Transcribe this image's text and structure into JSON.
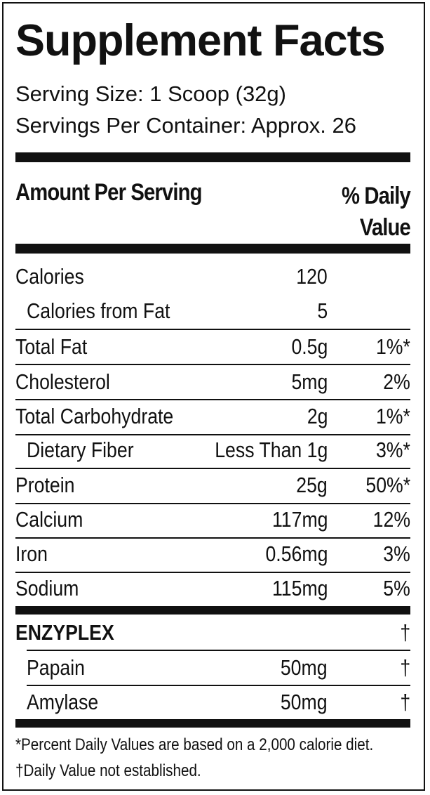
{
  "title": "Supplement Facts",
  "serving_size": "Serving Size: 1 Scoop (32g)",
  "servings_per_container": "Servings Per Container: Approx. 26",
  "header": {
    "amount_per_serving": "Amount Per Serving",
    "daily_value_line1": "% Daily",
    "daily_value_line2": "Value"
  },
  "nutrients": [
    {
      "name": "Calories",
      "amount": "120",
      "dv": ""
    },
    {
      "name": "Calories from Fat",
      "amount": "5",
      "dv": ""
    },
    {
      "name": "Total Fat",
      "amount": "0.5g",
      "dv": "1%*"
    },
    {
      "name": "Cholesterol",
      "amount": "5mg",
      "dv": "2%"
    },
    {
      "name": "Total Carbohydrate",
      "amount": "2g",
      "dv": "1%*"
    },
    {
      "name": "Dietary Fiber",
      "amount": "Less Than 1g",
      "dv": "3%*"
    },
    {
      "name": "Protein",
      "amount": "25g",
      "dv": "50%*"
    },
    {
      "name": "Calcium",
      "amount": "117mg",
      "dv": "12%"
    },
    {
      "name": "Iron",
      "amount": "0.56mg",
      "dv": "3%"
    },
    {
      "name": "Sodium",
      "amount": "115mg",
      "dv": "5%"
    }
  ],
  "blend": {
    "name": "ENZYPLEX",
    "dv": "†",
    "items": [
      {
        "name": "Papain",
        "amount": "50mg",
        "dv": "†"
      },
      {
        "name": "Amylase",
        "amount": "50mg",
        "dv": "†"
      }
    ]
  },
  "footnotes": {
    "percent_daily": "*Percent Daily Values are based on a 2,000 calorie diet.",
    "not_established": "†Daily Value not established."
  }
}
